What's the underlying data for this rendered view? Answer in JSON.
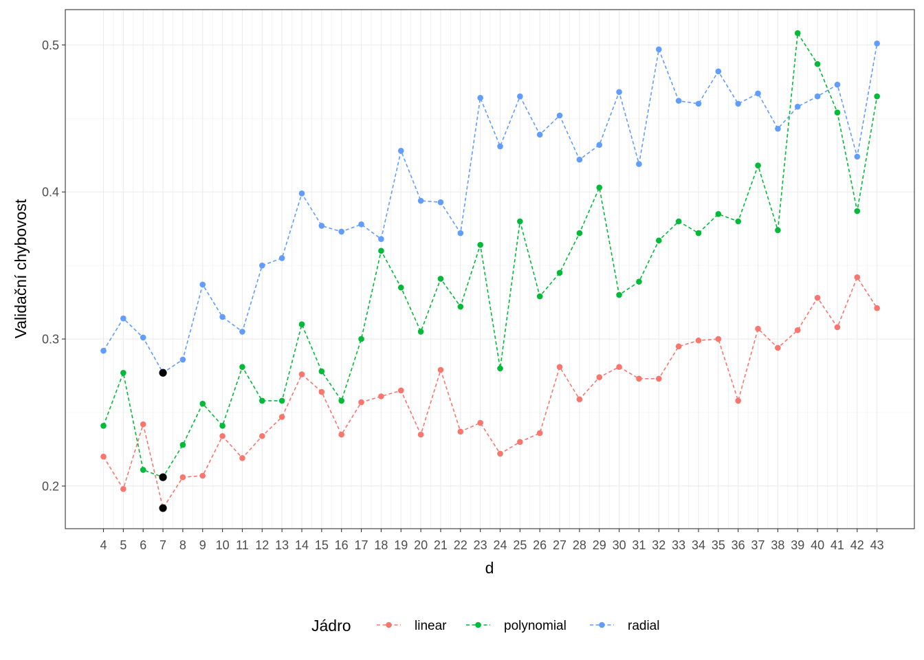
{
  "chart_data": {
    "type": "line",
    "xlabel": "d",
    "ylabel": "Validační chybovost",
    "x": [
      4,
      5,
      6,
      7,
      8,
      9,
      10,
      11,
      12,
      13,
      14,
      15,
      16,
      17,
      18,
      19,
      20,
      21,
      22,
      23,
      24,
      25,
      26,
      27,
      28,
      29,
      30,
      31,
      32,
      33,
      34,
      35,
      36,
      37,
      38,
      39,
      40,
      41,
      42,
      43
    ],
    "x_tick_labels": [
      "4",
      "5",
      "6",
      "7",
      "8",
      "9",
      "10",
      "11",
      "12",
      "13",
      "14",
      "15",
      "16",
      "17",
      "18",
      "19",
      "20",
      "21",
      "22",
      "23",
      "24",
      "25",
      "26",
      "27",
      "28",
      "29",
      "30",
      "31",
      "32",
      "33",
      "34",
      "35",
      "36",
      "37",
      "38",
      "39",
      "40",
      "41",
      "42",
      "43"
    ],
    "ylim": [
      0.171,
      0.524
    ],
    "y_ticks": [
      0.2,
      0.3,
      0.4,
      0.5
    ],
    "y_tick_labels": [
      "0.2",
      "0.3",
      "0.4",
      "0.5"
    ],
    "grid": true,
    "legend": {
      "title": "Jádro",
      "placement": "bottom"
    },
    "series": [
      {
        "name": "linear",
        "color": "#F8766D",
        "values": [
          0.22,
          0.198,
          0.242,
          0.185,
          0.206,
          0.207,
          0.234,
          0.219,
          0.234,
          0.247,
          0.276,
          0.264,
          0.235,
          0.257,
          0.261,
          0.265,
          0.235,
          0.279,
          0.237,
          0.243,
          0.222,
          0.23,
          0.236,
          0.281,
          0.259,
          0.274,
          0.281,
          0.273,
          0.273,
          0.295,
          0.299,
          0.3,
          0.258,
          0.307,
          0.294,
          0.306,
          0.328,
          0.308,
          0.342,
          0.321
        ]
      },
      {
        "name": "polynomial",
        "color": "#00BA38",
        "values": [
          0.241,
          0.277,
          0.211,
          0.206,
          0.228,
          0.256,
          0.241,
          0.281,
          0.258,
          0.258,
          0.31,
          0.278,
          0.258,
          0.3,
          0.36,
          0.335,
          0.305,
          0.341,
          0.322,
          0.364,
          0.28,
          0.38,
          0.329,
          0.345,
          0.372,
          0.403,
          0.33,
          0.339,
          0.367,
          0.38,
          0.372,
          0.385,
          0.38,
          0.418,
          0.374,
          0.508,
          0.487,
          0.454,
          0.387,
          0.465
        ]
      },
      {
        "name": "radial",
        "color": "#619CFF",
        "values": [
          0.292,
          0.314,
          0.301,
          0.277,
          0.286,
          0.337,
          0.315,
          0.305,
          0.35,
          0.355,
          0.399,
          0.377,
          0.373,
          0.378,
          0.368,
          0.428,
          0.394,
          0.393,
          0.372,
          0.464,
          0.431,
          0.465,
          0.439,
          0.452,
          0.422,
          0.432,
          0.468,
          0.419,
          0.497,
          0.462,
          0.46,
          0.482,
          0.46,
          0.467,
          0.443,
          0.458,
          0.465,
          0.473,
          0.424,
          0.501
        ]
      }
    ],
    "highlight_points": {
      "color": "#000000",
      "x": [
        7,
        7,
        7
      ],
      "values": [
        0.277,
        0.206,
        0.185
      ]
    }
  }
}
